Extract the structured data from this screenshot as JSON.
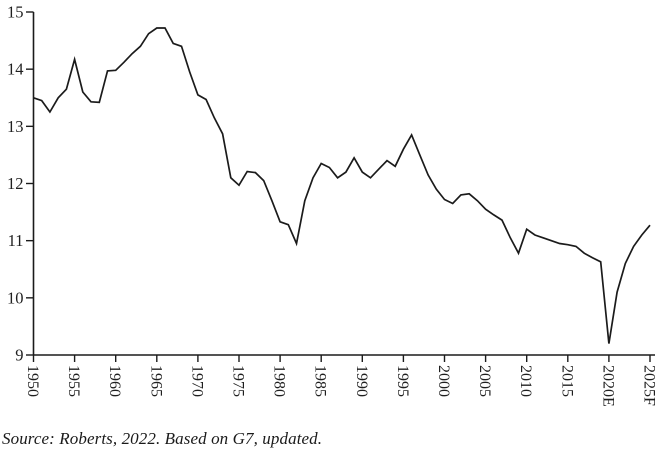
{
  "chart": {
    "source_note": "Source: Roberts, 2022. Based on G7, updated."
  },
  "chart_data": {
    "type": "line",
    "title": "",
    "xlabel": "",
    "ylabel": "",
    "grid": false,
    "legend": "none",
    "xlim": [
      1950,
      2025
    ],
    "ylim": [
      9,
      15
    ],
    "y_ticks": [
      9,
      10,
      11,
      12,
      13,
      14,
      15
    ],
    "x_tick_years": [
      1950,
      1955,
      1960,
      1965,
      1970,
      1975,
      1980,
      1985,
      1990,
      1995,
      2000,
      2005,
      2010,
      2015,
      2020,
      2025
    ],
    "x_tick_labels": [
      "1950",
      "1955",
      "1960",
      "1965",
      "1970",
      "1975",
      "1980",
      "1985",
      "1990",
      "1995",
      "2000",
      "2005",
      "2010",
      "2015",
      "2020E",
      "2025F"
    ],
    "x": [
      1950,
      1951,
      1952,
      1953,
      1954,
      1955,
      1956,
      1957,
      1958,
      1959,
      1960,
      1961,
      1962,
      1963,
      1964,
      1965,
      1966,
      1967,
      1968,
      1969,
      1970,
      1971,
      1972,
      1973,
      1974,
      1975,
      1976,
      1977,
      1978,
      1979,
      1980,
      1981,
      1982,
      1983,
      1984,
      1985,
      1986,
      1987,
      1988,
      1989,
      1990,
      1991,
      1992,
      1993,
      1994,
      1995,
      1996,
      1997,
      1998,
      1999,
      2000,
      2001,
      2002,
      2003,
      2004,
      2005,
      2006,
      2007,
      2008,
      2009,
      2010,
      2011,
      2012,
      2013,
      2014,
      2015,
      2016,
      2017,
      2018,
      2019,
      2020,
      2021,
      2022,
      2023,
      2024,
      2025
    ],
    "values": [
      13.5,
      13.45,
      13.25,
      13.5,
      13.65,
      14.17,
      13.6,
      13.43,
      13.42,
      13.97,
      13.98,
      14.12,
      14.27,
      14.4,
      14.62,
      14.72,
      14.72,
      14.45,
      14.4,
      13.95,
      13.55,
      13.47,
      13.15,
      12.87,
      12.1,
      11.97,
      12.21,
      12.19,
      12.05,
      11.7,
      11.33,
      11.28,
      10.95,
      11.7,
      12.1,
      12.35,
      12.28,
      12.1,
      12.2,
      12.45,
      12.2,
      12.1,
      12.25,
      12.4,
      12.3,
      12.6,
      12.85,
      12.5,
      12.15,
      11.9,
      11.72,
      11.65,
      11.8,
      11.82,
      11.7,
      11.55,
      11.45,
      11.36,
      11.05,
      10.78,
      11.2,
      11.1,
      11.05,
      11.0,
      10.95,
      10.93,
      10.9,
      10.78,
      10.7,
      10.63,
      9.2,
      10.1,
      10.6,
      10.9,
      11.1,
      11.27
    ],
    "line_color": "#1b1b1b",
    "axis_color": "#1b1b1b",
    "tick_label_color": "#1f1f1f",
    "source": "Source: Roberts, 2022. Based on G7, updated."
  }
}
